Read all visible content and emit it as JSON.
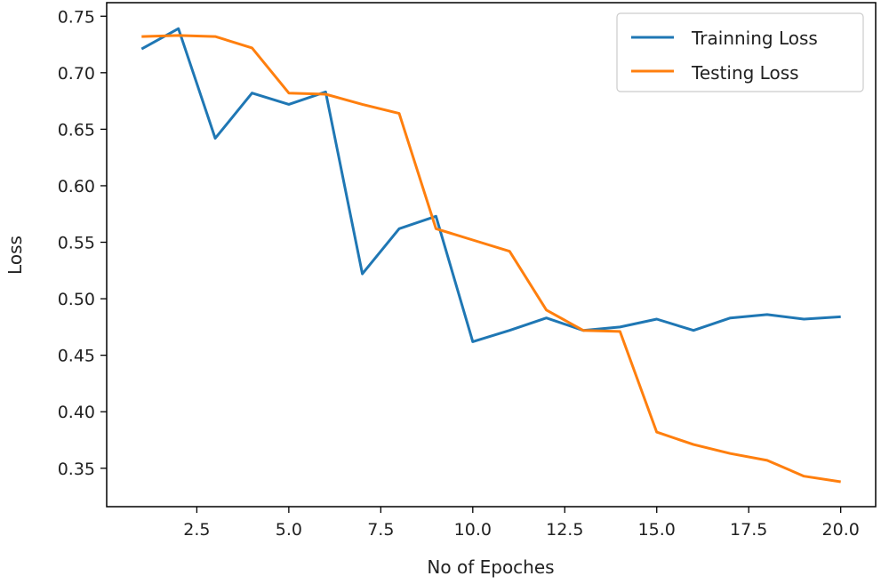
{
  "chart_data": {
    "type": "line",
    "title": "",
    "xlabel": "No of Epoches",
    "ylabel": "Loss",
    "xlim": [
      0.05,
      20.95
    ],
    "ylim": [
      0.316,
      0.762
    ],
    "xticks": [
      2.5,
      5.0,
      7.5,
      10.0,
      12.5,
      15.0,
      17.5,
      20.0
    ],
    "xtick_labels": [
      "2.5",
      "5.0",
      "7.5",
      "10.0",
      "12.5",
      "15.0",
      "17.5",
      "20.0"
    ],
    "yticks": [
      0.35,
      0.4,
      0.45,
      0.5,
      0.55,
      0.6,
      0.65,
      0.7,
      0.75
    ],
    "ytick_labels": [
      "0.35",
      "0.40",
      "0.45",
      "0.50",
      "0.55",
      "0.60",
      "0.65",
      "0.70",
      "0.75"
    ],
    "grid": false,
    "legend_position": "top-right",
    "x": [
      1,
      2,
      3,
      4,
      5,
      6,
      7,
      8,
      9,
      10,
      11,
      12,
      13,
      14,
      15,
      16,
      17,
      18,
      19,
      20
    ],
    "series": [
      {
        "name": "Trainning Loss",
        "color": "#1f77b4",
        "values": [
          0.721,
          0.739,
          0.642,
          0.682,
          0.672,
          0.683,
          0.522,
          0.562,
          0.573,
          0.462,
          0.472,
          0.483,
          0.472,
          0.475,
          0.482,
          0.472,
          0.483,
          0.486,
          0.482,
          0.484
        ]
      },
      {
        "name": "Testing Loss",
        "color": "#ff7f0e",
        "values": [
          0.732,
          0.733,
          0.732,
          0.722,
          0.682,
          0.681,
          0.672,
          0.664,
          0.562,
          0.552,
          0.542,
          0.49,
          0.472,
          0.471,
          0.382,
          0.371,
          0.363,
          0.357,
          0.343,
          0.338
        ]
      }
    ]
  }
}
